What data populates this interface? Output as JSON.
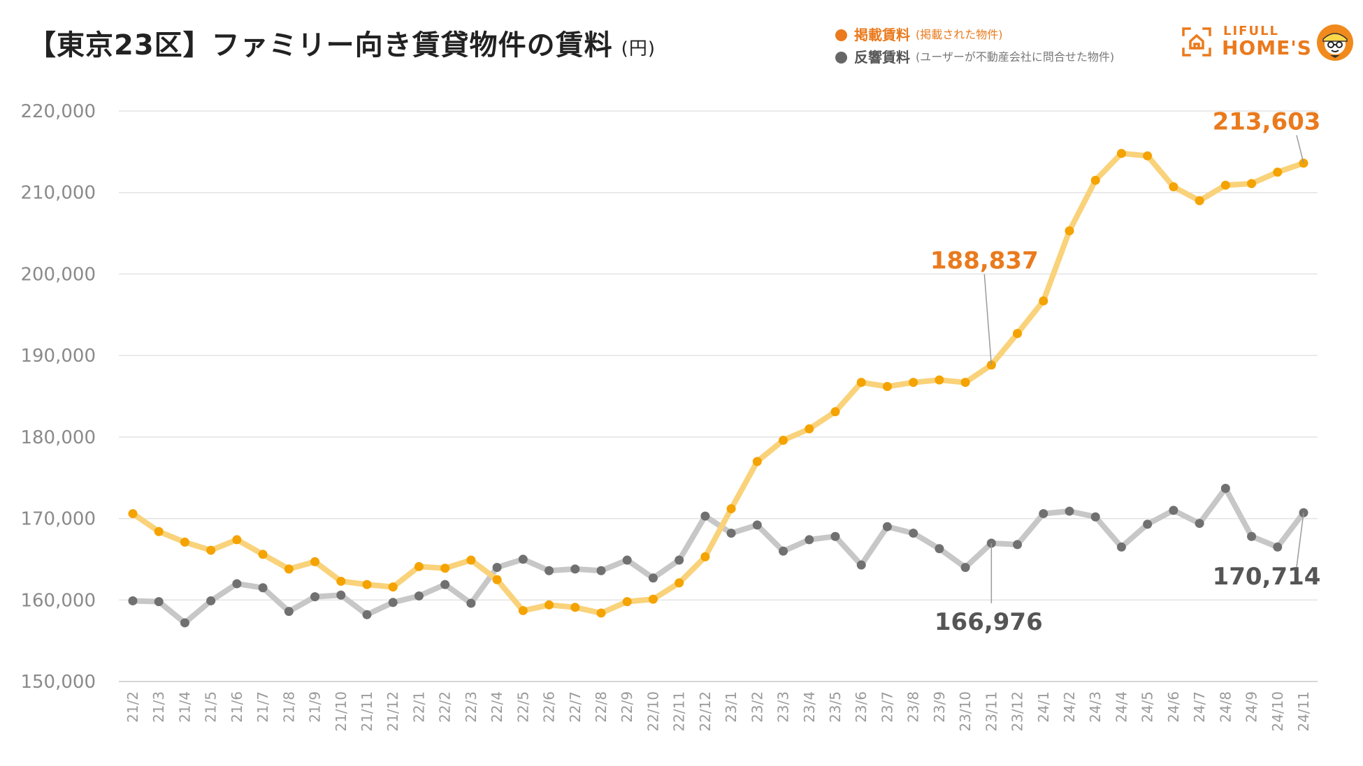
{
  "header": {
    "title": "【東京23区】ファミリー向き賃貸物件の賃料",
    "unit": "(円)"
  },
  "legend": [
    {
      "name": "掲載賃料",
      "note": "(掲載された物件)",
      "color": "#ea7a1d"
    },
    {
      "name": "反響賃料",
      "note": "(ユーザーが不動産会社に問合せた物件)",
      "color": "#666666"
    }
  ],
  "logo": {
    "small": "LIFULL",
    "big": "HOME'S"
  },
  "chart_data": {
    "type": "line",
    "title": "【東京23区】ファミリー向き賃貸物件の賃料",
    "ylabel": "(円)",
    "xlabel": "",
    "ylim": [
      150000,
      220000
    ],
    "yticks": [
      150000,
      160000,
      170000,
      180000,
      190000,
      200000,
      210000,
      220000
    ],
    "ytick_labels": [
      "150,000",
      "160,000",
      "170,000",
      "180,000",
      "190,000",
      "200,000",
      "210,000",
      "220,000"
    ],
    "grid": true,
    "categories": [
      "21/2",
      "21/3",
      "21/4",
      "21/5",
      "21/6",
      "21/7",
      "21/8",
      "21/9",
      "21/10",
      "21/11",
      "21/12",
      "22/1",
      "22/2",
      "22/3",
      "22/4",
      "22/5",
      "22/6",
      "22/7",
      "22/8",
      "22/9",
      "22/10",
      "22/11",
      "22/12",
      "23/1",
      "23/2",
      "23/3",
      "23/4",
      "23/5",
      "23/6",
      "23/7",
      "23/8",
      "23/9",
      "23/10",
      "23/11",
      "23/12",
      "24/1",
      "24/2",
      "24/3",
      "24/4",
      "24/5",
      "24/6",
      "24/7",
      "24/8",
      "24/9",
      "24/10",
      "24/11"
    ],
    "series": [
      {
        "name": "掲載賃料",
        "line_color": "#f9d27a",
        "point_color": "#f4a300",
        "values": [
          170600,
          168400,
          167100,
          166100,
          167400,
          165600,
          163800,
          164700,
          162300,
          161900,
          161600,
          164100,
          163900,
          164900,
          162500,
          158700,
          159400,
          159100,
          158400,
          159800,
          160100,
          162100,
          165300,
          171200,
          177000,
          179600,
          181000,
          183100,
          186700,
          186200,
          186700,
          187000,
          186700,
          188837,
          192700,
          196700,
          205300,
          211500,
          214800,
          214500,
          210700,
          209000,
          210900,
          211100,
          212500,
          213603
        ]
      },
      {
        "name": "反響賃料",
        "line_color": "#c7c7c7",
        "point_color": "#707070",
        "values": [
          159900,
          159800,
          157200,
          159900,
          162000,
          161500,
          158600,
          160400,
          160600,
          158200,
          159700,
          160500,
          161900,
          159600,
          164000,
          165000,
          163600,
          163800,
          163600,
          164900,
          162700,
          164900,
          170300,
          168200,
          169200,
          166000,
          167400,
          167800,
          164300,
          169000,
          168200,
          166300,
          164000,
          166976,
          166800,
          170600,
          170900,
          170200,
          166500,
          169300,
          171000,
          169400,
          173700,
          167800,
          166500,
          170714
        ]
      }
    ],
    "annotations": [
      {
        "label": "188,837",
        "series": 0,
        "index": 33,
        "color": "#ea7a1d"
      },
      {
        "label": "213,603",
        "series": 0,
        "index": 45,
        "color": "#ea7a1d"
      },
      {
        "label": "166,976",
        "series": 1,
        "index": 33,
        "color": "#555555"
      },
      {
        "label": "170,714",
        "series": 1,
        "index": 45,
        "color": "#555555"
      }
    ]
  }
}
